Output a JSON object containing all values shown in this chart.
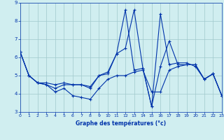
{
  "title": "Graphe des températures (°c)",
  "bg_color": "#d0eef0",
  "grid_color": "#a0c8cc",
  "line_color": "#0033aa",
  "xlim": [
    0,
    23
  ],
  "ylim": [
    3,
    9
  ],
  "yticks": [
    3,
    4,
    5,
    6,
    7,
    8,
    9
  ],
  "xticks": [
    0,
    1,
    2,
    3,
    4,
    5,
    6,
    7,
    8,
    9,
    10,
    11,
    12,
    13,
    14,
    15,
    16,
    17,
    18,
    19,
    20,
    21,
    22,
    23
  ],
  "series": [
    [
      6.3,
      5.0,
      4.6,
      4.5,
      4.1,
      4.3,
      3.9,
      3.8,
      3.7,
      4.3,
      4.8,
      5.0,
      5.0,
      5.2,
      5.3,
      4.1,
      4.1,
      5.3,
      5.5,
      5.6,
      5.6,
      4.8,
      5.1,
      3.9
    ],
    [
      6.3,
      5.0,
      4.6,
      4.6,
      4.5,
      4.6,
      4.5,
      4.5,
      4.4,
      5.0,
      5.1,
      6.2,
      8.6,
      5.3,
      5.4,
      3.3,
      8.4,
      5.6,
      5.7,
      5.7,
      5.5,
      4.8,
      5.1,
      3.9
    ],
    [
      6.3,
      5.0,
      4.6,
      4.5,
      4.3,
      4.5,
      4.5,
      4.5,
      4.3,
      5.0,
      5.2,
      6.2,
      6.5,
      8.6,
      5.4,
      3.3,
      5.5,
      6.9,
      5.6,
      5.6,
      5.6,
      4.8,
      5.1,
      3.9
    ]
  ]
}
